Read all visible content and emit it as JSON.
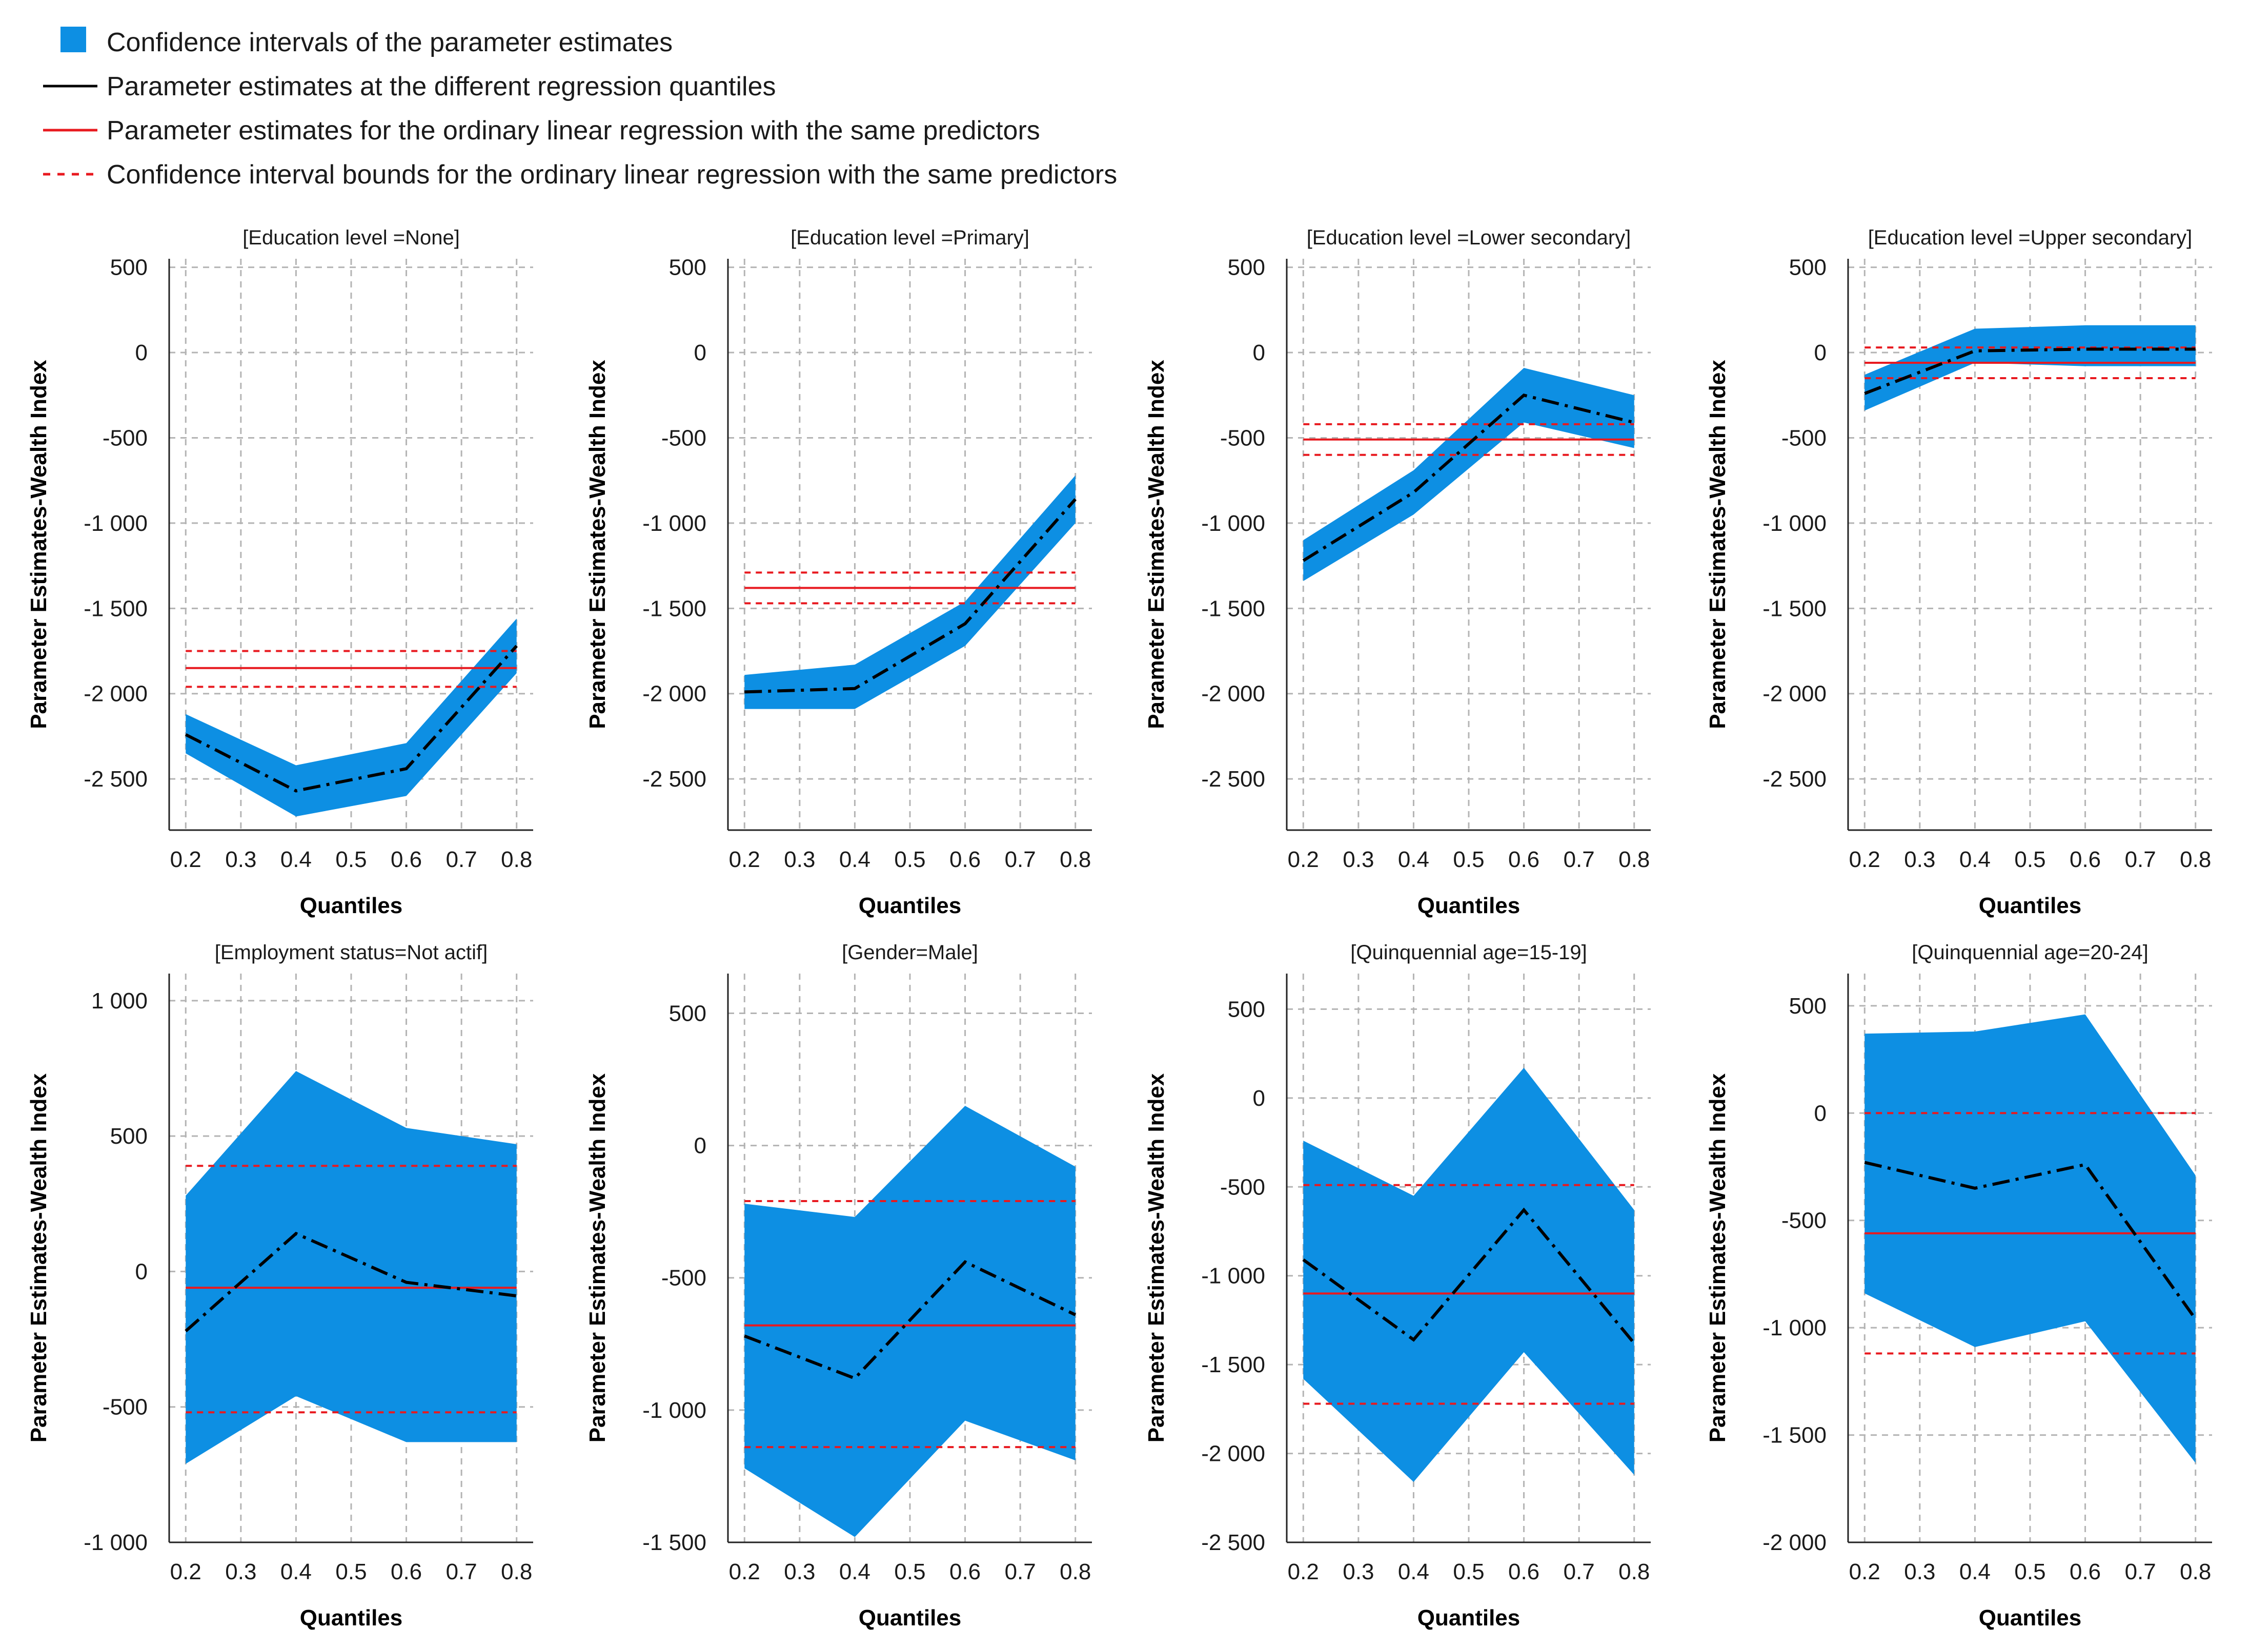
{
  "legend": {
    "items": [
      {
        "kind": "band",
        "label": "Confidence intervals of the parameter estimates"
      },
      {
        "kind": "black-line",
        "label": "Parameter estimates at the different regression quantiles"
      },
      {
        "kind": "red-line",
        "label": "Parameter estimates for the ordinary linear regression with the same predictors"
      },
      {
        "kind": "red-dash",
        "label": "Confidence interval bounds for the ordinary linear regression with the same predictors"
      }
    ]
  },
  "colors": {
    "band": "#0d8fe3",
    "quantile_line": "#000000",
    "ols_line": "#e8191f",
    "grid": "#b4b4b4"
  },
  "chart_data": [
    {
      "type": "line",
      "title": "[Education level =None]",
      "xlabel": "Quantiles",
      "ylabel": "Parameter Estimates-Wealth Index",
      "x": [
        0.2,
        0.4,
        0.6,
        0.8
      ],
      "x_ticks": [
        "0.2",
        "0.3",
        "0.4",
        "0.5",
        "0.6",
        "0.7",
        "0.8"
      ],
      "y_ticks": [
        500,
        0,
        -500,
        -1000,
        -1500,
        -2000,
        -2500
      ],
      "y_tick_labels": [
        "500",
        "0",
        "-500",
        "-1 000",
        "-1 500",
        "-2 000",
        "-2 500"
      ],
      "ylim": [
        -2800,
        550
      ],
      "estimate": [
        -2240,
        -2570,
        -2440,
        -1720
      ],
      "ci_upper": [
        -2120,
        -2420,
        -2290,
        -1560
      ],
      "ci_lower": [
        -2350,
        -2720,
        -2600,
        -1880
      ],
      "ols_estimate": -1850,
      "ols_ci": [
        -1960,
        -1750
      ]
    },
    {
      "type": "line",
      "title": "[Education level =Primary]",
      "xlabel": "Quantiles",
      "ylabel": "Parameter Estimates-Wealth Index",
      "x": [
        0.2,
        0.4,
        0.6,
        0.8
      ],
      "x_ticks": [
        "0.2",
        "0.3",
        "0.4",
        "0.5",
        "0.6",
        "0.7",
        "0.8"
      ],
      "y_ticks": [
        500,
        0,
        -500,
        -1000,
        -1500,
        -2000,
        -2500
      ],
      "y_tick_labels": [
        "500",
        "0",
        "-500",
        "-1 000",
        "-1 500",
        "-2 000",
        "-2 500"
      ],
      "ylim": [
        -2800,
        550
      ],
      "estimate": [
        -1990,
        -1970,
        -1590,
        -860
      ],
      "ci_upper": [
        -1890,
        -1830,
        -1460,
        -720
      ],
      "ci_lower": [
        -2090,
        -2090,
        -1720,
        -1000
      ],
      "ols_estimate": -1380,
      "ols_ci": [
        -1470,
        -1290
      ]
    },
    {
      "type": "line",
      "title": "[Education level =Lower secondary]",
      "xlabel": "Quantiles",
      "ylabel": "Parameter Estimates-Wealth Index",
      "x": [
        0.2,
        0.4,
        0.6,
        0.8
      ],
      "x_ticks": [
        "0.2",
        "0.3",
        "0.4",
        "0.5",
        "0.6",
        "0.7",
        "0.8"
      ],
      "y_ticks": [
        500,
        0,
        -500,
        -1000,
        -1500,
        -2000,
        -2500
      ],
      "y_tick_labels": [
        "500",
        "0",
        "-500",
        "-1 000",
        "-1 500",
        "-2 000",
        "-2 500"
      ],
      "ylim": [
        -2800,
        550
      ],
      "estimate": [
        -1220,
        -820,
        -250,
        -410
      ],
      "ci_upper": [
        -1100,
        -690,
        -90,
        -250
      ],
      "ci_lower": [
        -1340,
        -950,
        -410,
        -560
      ],
      "ols_estimate": -510,
      "ols_ci": [
        -600,
        -420
      ]
    },
    {
      "type": "line",
      "title": "[Education level =Upper secondary]",
      "xlabel": "Quantiles",
      "ylabel": "Parameter Estimates-Wealth Index",
      "x": [
        0.2,
        0.4,
        0.6,
        0.8
      ],
      "x_ticks": [
        "0.2",
        "0.3",
        "0.4",
        "0.5",
        "0.6",
        "0.7",
        "0.8"
      ],
      "y_ticks": [
        500,
        0,
        -500,
        -1000,
        -1500,
        -2000,
        -2500
      ],
      "y_tick_labels": [
        "500",
        "0",
        "-500",
        "-1 000",
        "-1 500",
        "-2 000",
        "-2 500"
      ],
      "ylim": [
        -2800,
        550
      ],
      "estimate": [
        -240,
        10,
        20,
        20
      ],
      "ci_upper": [
        -130,
        140,
        160,
        160
      ],
      "ci_lower": [
        -340,
        -60,
        -80,
        -80
      ],
      "ols_estimate": -60,
      "ols_ci": [
        -150,
        30
      ]
    },
    {
      "type": "line",
      "title": "[Employment status=Not actif]",
      "xlabel": "Quantiles",
      "ylabel": "Parameter Estimates-Wealth Index",
      "x": [
        0.2,
        0.4,
        0.6,
        0.8
      ],
      "x_ticks": [
        "0.2",
        "0.3",
        "0.4",
        "0.5",
        "0.6",
        "0.7",
        "0.8"
      ],
      "y_ticks": [
        1000,
        500,
        0,
        -500,
        -1000
      ],
      "y_tick_labels": [
        "1 000",
        "500",
        "0",
        "-500",
        "-1 000"
      ],
      "ylim": [
        -1000,
        1100
      ],
      "estimate": [
        -220,
        140,
        -40,
        -90
      ],
      "ci_upper": [
        280,
        740,
        530,
        470
      ],
      "ci_lower": [
        -710,
        -460,
        -630,
        -630
      ],
      "ols_estimate": -60,
      "ols_ci": [
        -520,
        390
      ]
    },
    {
      "type": "line",
      "title": "[Gender=Male]",
      "xlabel": "Quantiles",
      "ylabel": "Parameter Estimates-Wealth Index",
      "x": [
        0.2,
        0.4,
        0.6,
        0.8
      ],
      "x_ticks": [
        "0.2",
        "0.3",
        "0.4",
        "0.5",
        "0.6",
        "0.7",
        "0.8"
      ],
      "y_ticks": [
        500,
        0,
        -500,
        -1000,
        -1500
      ],
      "y_tick_labels": [
        "500",
        "0",
        "-500",
        "-1 000",
        "-1 500"
      ],
      "ylim": [
        -1500,
        650
      ],
      "estimate": [
        -720,
        -880,
        -440,
        -640
      ],
      "ci_upper": [
        -220,
        -270,
        150,
        -80
      ],
      "ci_lower": [
        -1220,
        -1480,
        -1040,
        -1190
      ],
      "ols_estimate": -680,
      "ols_ci": [
        -1140,
        -210
      ]
    },
    {
      "type": "line",
      "title": "[Quinquennial age=15-19]",
      "xlabel": "Quantiles",
      "ylabel": "Parameter Estimates-Wealth Index",
      "x": [
        0.2,
        0.4,
        0.6,
        0.8
      ],
      "x_ticks": [
        "0.2",
        "0.3",
        "0.4",
        "0.5",
        "0.6",
        "0.7",
        "0.8"
      ],
      "y_ticks": [
        500,
        0,
        -500,
        -1000,
        -1500,
        -2000,
        -2500
      ],
      "y_tick_labels": [
        "500",
        "0",
        "-500",
        "-1 000",
        "-1 500",
        "-2 000",
        "-2 500"
      ],
      "ylim": [
        -2500,
        700
      ],
      "estimate": [
        -910,
        -1360,
        -630,
        -1380
      ],
      "ci_upper": [
        -240,
        -550,
        170,
        -630
      ],
      "ci_lower": [
        -1580,
        -2160,
        -1430,
        -2120
      ],
      "ols_estimate": -1100,
      "ols_ci": [
        -1720,
        -490
      ]
    },
    {
      "type": "line",
      "title": "[Quinquennial age=20-24]",
      "xlabel": "Quantiles",
      "ylabel": "Parameter Estimates-Wealth Index",
      "x": [
        0.2,
        0.4,
        0.6,
        0.8
      ],
      "x_ticks": [
        "0.2",
        "0.3",
        "0.4",
        "0.5",
        "0.6",
        "0.7",
        "0.8"
      ],
      "y_ticks": [
        500,
        0,
        -500,
        -1000,
        -1500,
        -2000
      ],
      "y_tick_labels": [
        "500",
        "0",
        "-500",
        "-1 000",
        "-1 500",
        "-2 000"
      ],
      "ylim": [
        -2000,
        650
      ],
      "estimate": [
        -230,
        -350,
        -240,
        -960
      ],
      "ci_upper": [
        370,
        380,
        460,
        -290
      ],
      "ci_lower": [
        -840,
        -1090,
        -970,
        -1630
      ],
      "ols_estimate": -560,
      "ols_ci": [
        -1120,
        0
      ]
    }
  ]
}
